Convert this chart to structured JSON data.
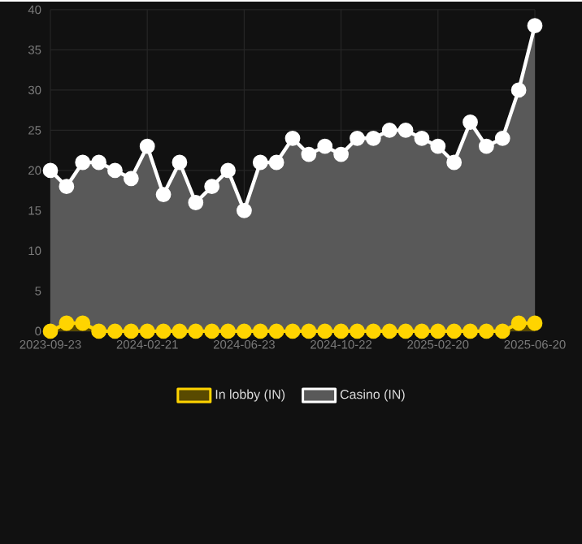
{
  "chart_data": {
    "type": "area",
    "categories": [
      "2023-09-23",
      null,
      null,
      null,
      null,
      null,
      "2024-02-21",
      null,
      null,
      null,
      null,
      null,
      "2024-06-23",
      null,
      null,
      null,
      null,
      null,
      "2024-10-22",
      null,
      null,
      null,
      null,
      null,
      "2025-02-20",
      null,
      null,
      null,
      null,
      null,
      "2025-06-20"
    ],
    "series": [
      {
        "name": "In lobby (IN)",
        "color": "#ffd400",
        "values": [
          0,
          1,
          1,
          0,
          0,
          0,
          0,
          0,
          0,
          0,
          0,
          0,
          0,
          0,
          0,
          0,
          0,
          0,
          0,
          0,
          0,
          0,
          0,
          0,
          0,
          0,
          0,
          0,
          0,
          1,
          1
        ]
      },
      {
        "name": "Casino (IN)",
        "color": "#ffffff",
        "values": [
          20,
          18,
          21,
          21,
          20,
          19,
          23,
          17,
          21,
          16,
          18,
          20,
          15,
          21,
          21,
          24,
          22,
          23,
          22,
          24,
          24,
          25,
          25,
          24,
          23,
          21,
          26,
          23,
          24,
          30,
          38
        ]
      }
    ],
    "ylim": [
      0,
      40
    ],
    "yticks": [
      0,
      5,
      10,
      15,
      20,
      25,
      30,
      35,
      40
    ],
    "grid": true,
    "legend": "bottom",
    "marker": "circle",
    "line_style": "solid"
  }
}
